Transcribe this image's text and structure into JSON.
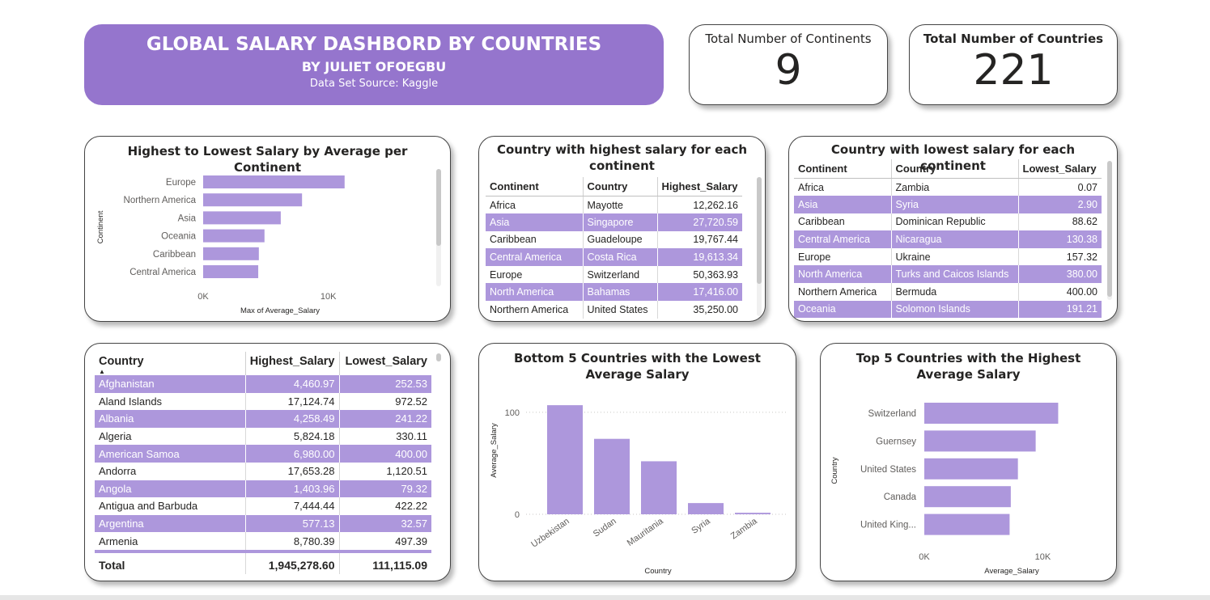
{
  "header": {
    "title": "GLOBAL SALARY DASHBORD BY COUNTRIES",
    "author": "BY JULIET OFOEGBU",
    "source": "Data Set Source: Kaggle"
  },
  "kpis": {
    "continents": {
      "label": "Total Number of Continents",
      "value": "9"
    },
    "countries": {
      "label": "Total Number of Countries",
      "value": "221"
    }
  },
  "colors": {
    "accent": "#9575cd",
    "bar": "#ad97dc",
    "rowAlt": "#ad97dc"
  },
  "highest_table": {
    "title": "Country with highest salary for each continent",
    "columns": [
      "Continent",
      "Country",
      "Highest_Salary"
    ],
    "rows": [
      [
        "Africa",
        "Mayotte",
        "12,262.16"
      ],
      [
        "Asia",
        "Singapore",
        "27,720.59"
      ],
      [
        "Caribbean",
        "Guadeloupe",
        "19,767.44"
      ],
      [
        "Central America",
        "Costa Rica",
        "19,613.34"
      ],
      [
        "Europe",
        "Switzerland",
        "50,363.93"
      ],
      [
        "North America",
        "Bahamas",
        "17,416.00"
      ],
      [
        "Northern America",
        "United States",
        "35,250.00"
      ]
    ]
  },
  "lowest_table": {
    "title": "Country with lowest salary for each continent",
    "columns": [
      "Continent",
      "Country",
      "Lowest_Salary"
    ],
    "rows": [
      [
        "Africa",
        "Zambia",
        "0.07"
      ],
      [
        "Asia",
        "Syria",
        "2.90"
      ],
      [
        "Caribbean",
        "Dominican Republic",
        "88.62"
      ],
      [
        "Central America",
        "Nicaragua",
        "130.38"
      ],
      [
        "Europe",
        "Ukraine",
        "157.32"
      ],
      [
        "North America",
        "Turks and Caicos Islands",
        "380.00"
      ],
      [
        "Northern America",
        "Bermuda",
        "400.00"
      ],
      [
        "Oceania",
        "Solomon Islands",
        "191.21"
      ]
    ]
  },
  "country_table": {
    "columns": [
      "Country",
      "Highest_Salary",
      "Lowest_Salary"
    ],
    "sort_indicator": "▲",
    "rows": [
      [
        "Afghanistan",
        "4,460.97",
        "252.53"
      ],
      [
        "Aland Islands",
        "17,124.74",
        "972.52"
      ],
      [
        "Albania",
        "4,258.49",
        "241.22"
      ],
      [
        "Algeria",
        "5,824.18",
        "330.11"
      ],
      [
        "American Samoa",
        "6,980.00",
        "400.00"
      ],
      [
        "Andorra",
        "17,653.28",
        "1,120.51"
      ],
      [
        "Angola",
        "1,403.96",
        "79.32"
      ],
      [
        "Antigua and Barbuda",
        "7,444.44",
        "422.22"
      ],
      [
        "Argentina",
        "577.13",
        "32.57"
      ],
      [
        "Armenia",
        "8,780.39",
        "497.39"
      ]
    ],
    "total": [
      "Total",
      "1,945,278.60",
      "111,115.09"
    ]
  },
  "chart_data": [
    {
      "type": "bar",
      "orientation": "horizontal",
      "title": "Highest to Lowest Salary by Average per Continent",
      "xlabel": "Max of Average_Salary",
      "ylabel": "Continent",
      "categories": [
        "Europe",
        "Northern America",
        "Asia",
        "Oceania",
        "Caribbean",
        "Central America"
      ],
      "values": [
        11300,
        7900,
        6200,
        4900,
        4450,
        4400
      ],
      "xlim": [
        0,
        15000
      ],
      "xticks": [
        0,
        10000
      ],
      "xtick_labels": [
        "0K",
        "10K"
      ]
    },
    {
      "type": "bar",
      "orientation": "vertical",
      "title": "Bottom 5 Countries with the Lowest Average Salary",
      "xlabel": "Country",
      "ylabel": "Average_Salary",
      "categories": [
        "Uzbekistan",
        "Sudan",
        "Mauritania",
        "Syria",
        "Zambia"
      ],
      "values": [
        107,
        74,
        52,
        11,
        1.5
      ],
      "ylim": [
        0,
        115
      ],
      "yticks": [
        0,
        100
      ],
      "grid": true
    },
    {
      "type": "bar",
      "orientation": "horizontal",
      "title": "Top 5 Countries with the Highest Average Salary",
      "xlabel": "Average_Salary",
      "ylabel": "Country",
      "categories": [
        "Switzerland",
        "Guernsey",
        "United States",
        "Canada",
        "United King..."
      ],
      "values": [
        11300,
        9400,
        7900,
        7300,
        7200
      ],
      "xlim": [
        0,
        12500
      ],
      "xticks": [
        0,
        10000
      ],
      "xtick_labels": [
        "0K",
        "10K"
      ]
    }
  ]
}
